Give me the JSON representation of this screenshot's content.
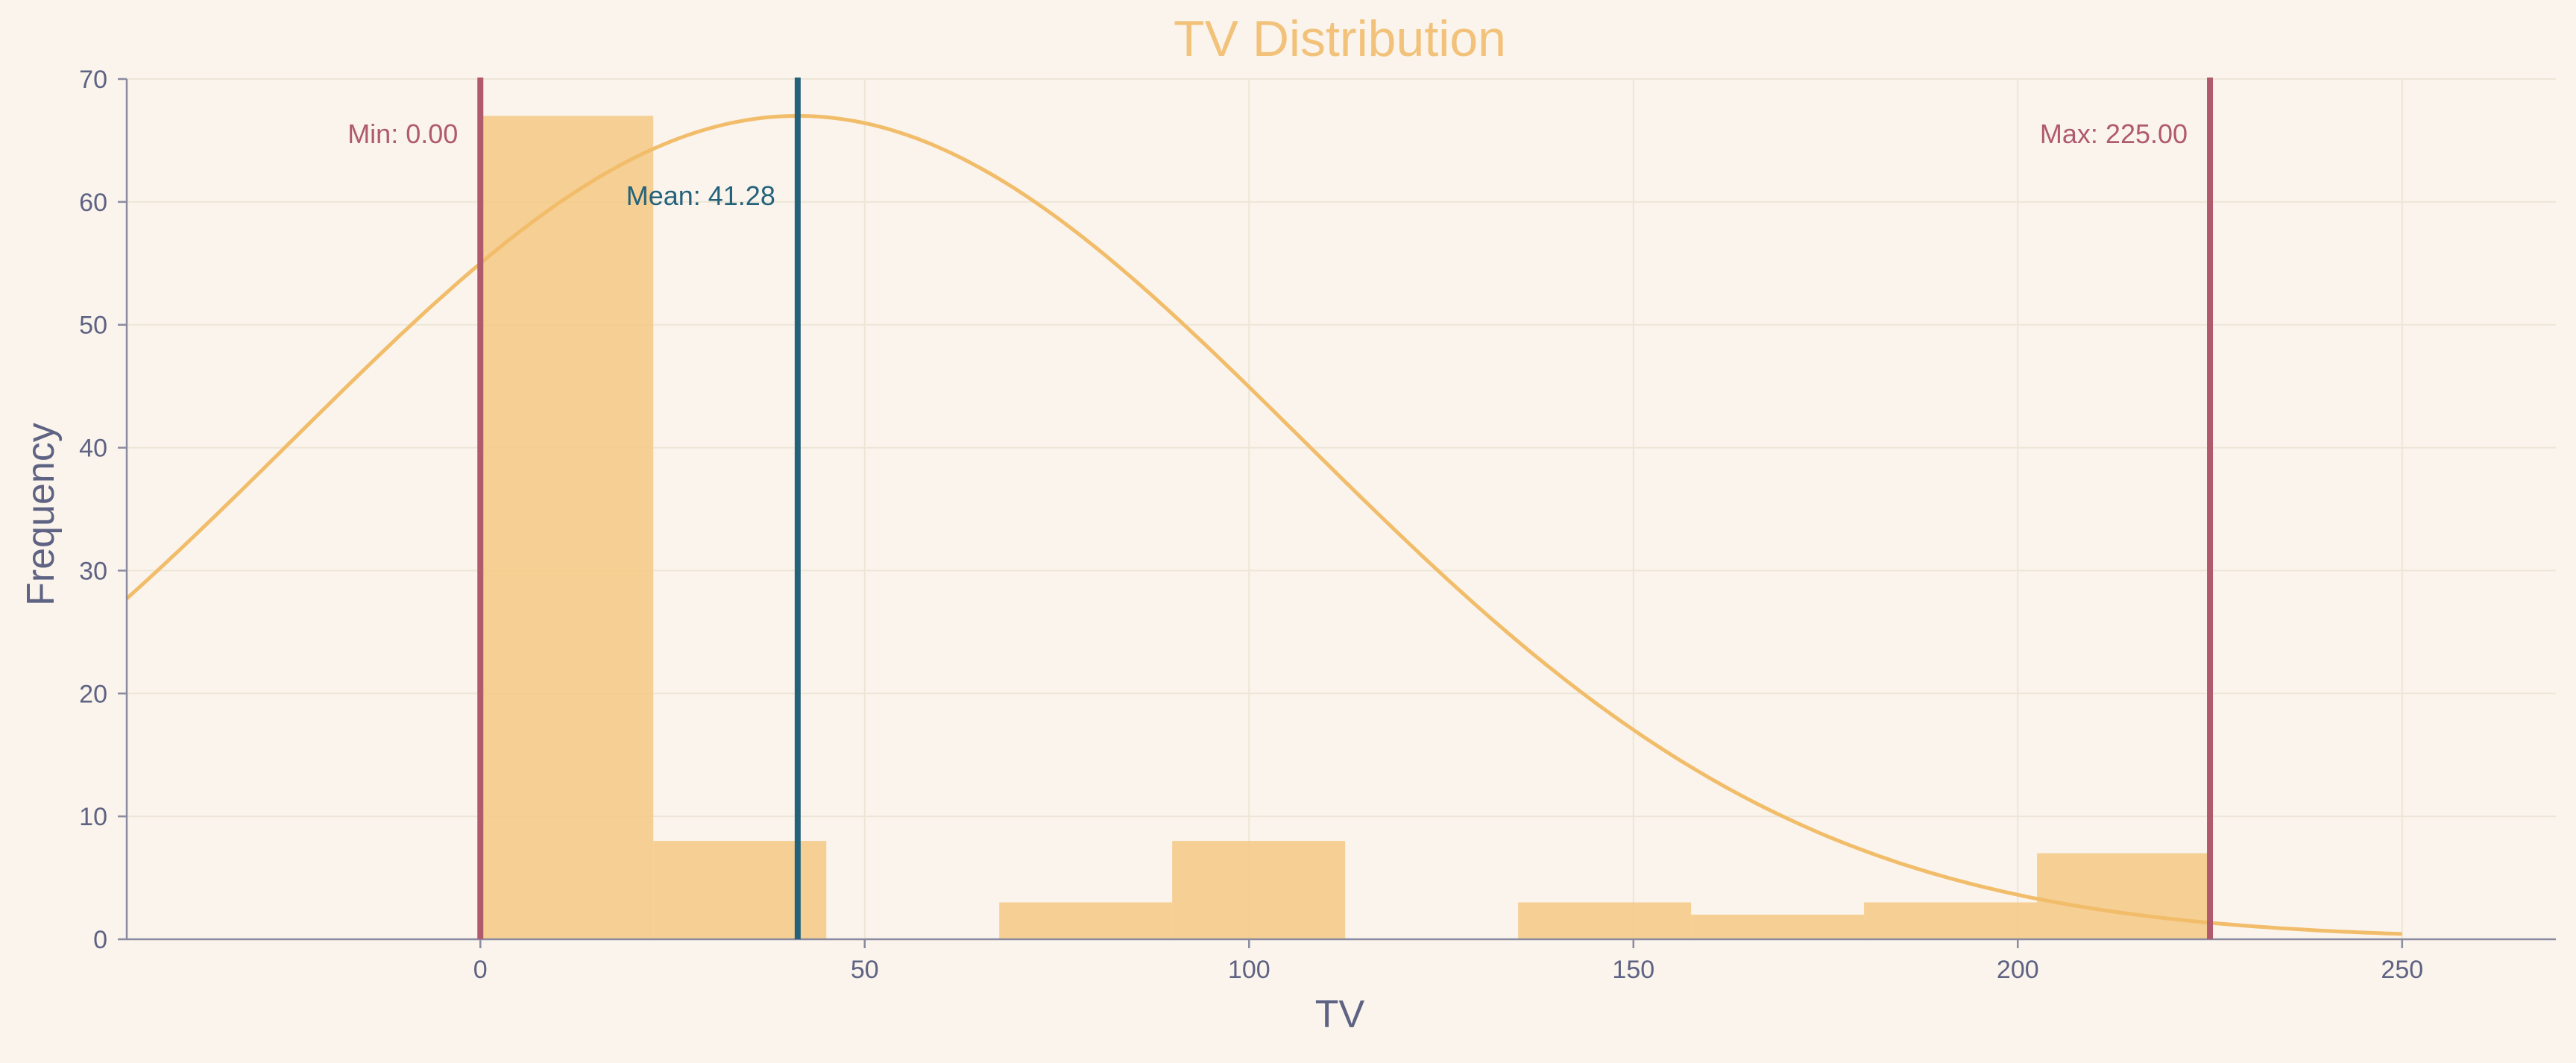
{
  "chart_data": {
    "type": "bar",
    "title": "TV Distribution",
    "xlabel": "TV",
    "ylabel": "Frequency",
    "xlim": [
      -46,
      270
    ],
    "ylim": [
      0,
      70
    ],
    "x_ticks": [
      0,
      50,
      100,
      150,
      200,
      250
    ],
    "y_ticks": [
      0,
      10,
      20,
      30,
      40,
      50,
      60,
      70
    ],
    "grid": true,
    "histogram": {
      "bin_edges": [
        0,
        22.5,
        45,
        67.5,
        90,
        112.5,
        135,
        157.5,
        180,
        202.5,
        225
      ],
      "counts": [
        67,
        8,
        0,
        3,
        8,
        0,
        3,
        2,
        3,
        7
      ]
    },
    "density_curve": {
      "type": "normal",
      "mean": 41.28,
      "peak": 67,
      "x_start": -46,
      "x_end": 250
    },
    "reference_lines": [
      {
        "id": "min",
        "x": 0.0,
        "label": "Min: 0.00",
        "color": "#b05a6e"
      },
      {
        "id": "mean",
        "x": 41.28,
        "label": "Mean: 41.28",
        "color": "#23627a"
      },
      {
        "id": "max",
        "x": 225.0,
        "label": "Max: 225.00",
        "color": "#b05a6e"
      }
    ],
    "colors": {
      "bars": "#f5c780",
      "curve": "#f2bd6a",
      "title": "#f2c27a"
    }
  }
}
